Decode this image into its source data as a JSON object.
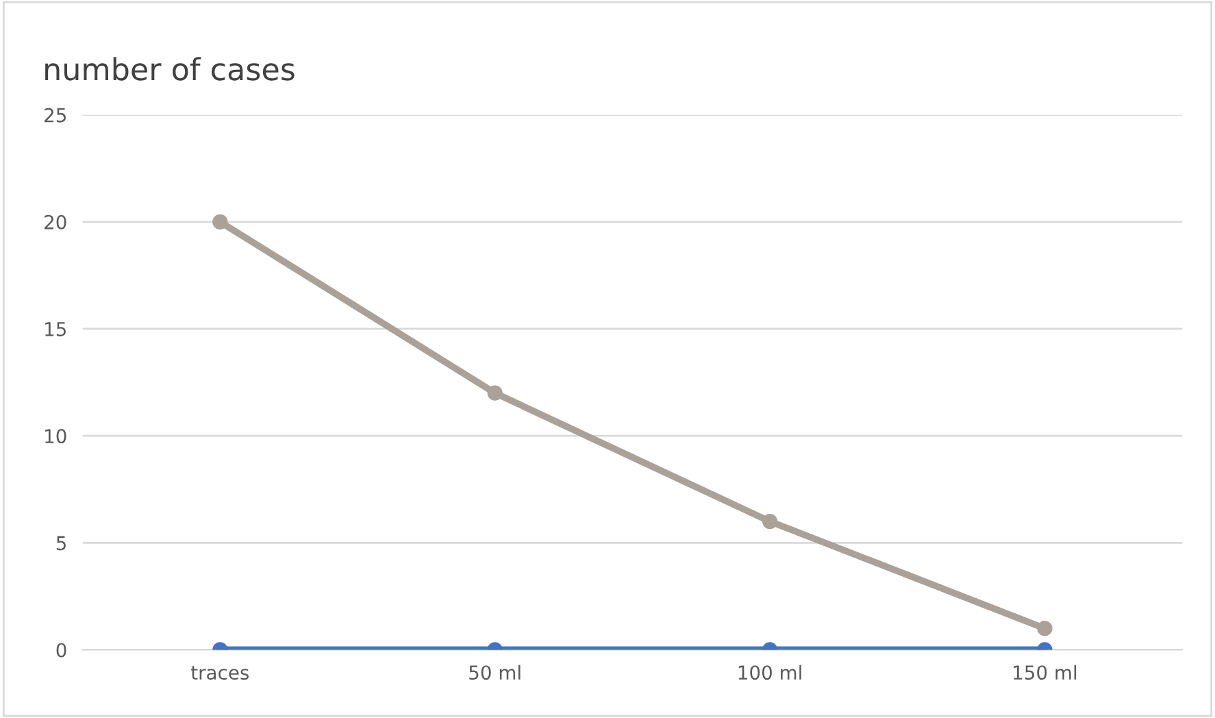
{
  "chart_data": {
    "type": "line",
    "title": "number of cases",
    "categories": [
      "traces",
      "50 ml",
      "100 ml",
      "150 ml"
    ],
    "series": [
      {
        "color": "#aaa198",
        "values": [
          20,
          12,
          6,
          1
        ]
      },
      {
        "color": "#4472c4",
        "values": [
          0,
          0,
          0,
          0
        ]
      }
    ],
    "ylim": [
      0,
      25
    ],
    "yticks": [
      0,
      5,
      10,
      15,
      20,
      25
    ],
    "grid": "y",
    "marker": "circle",
    "line_style": "solid",
    "legend": false
  }
}
